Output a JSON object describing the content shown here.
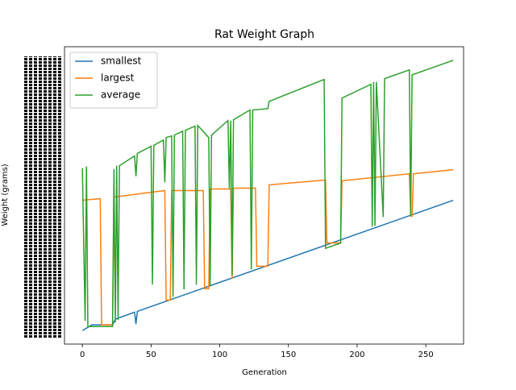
{
  "chart_data": {
    "type": "line",
    "title": "Rat Weight Graph",
    "xlabel": "Generation",
    "ylabel": "Weight (grams)",
    "xlim": [
      -13,
      277.5
    ],
    "xticks": [
      0,
      50,
      100,
      150,
      200,
      250
    ],
    "ylim": [
      -5,
      105
    ],
    "legend": "upper left",
    "series": [
      {
        "name": "smallest",
        "color": "#1f77b4",
        "x": [
          0,
          7,
          22,
          24,
          38,
          39,
          40,
          270
        ],
        "values": [
          0,
          2.1,
          2.1,
          4.2,
          6.8,
          2.4,
          7.1,
          48.2
        ]
      },
      {
        "name": "largest",
        "color": "#ff7f0e",
        "x": [
          0,
          13,
          14,
          22,
          23,
          60,
          61,
          64,
          65,
          88,
          89,
          92,
          93,
          108,
          109,
          110,
          126,
          127,
          135,
          136,
          177,
          178,
          188,
          189,
          238,
          239,
          240,
          241,
          270
        ],
        "values": [
          48.2,
          48.8,
          2.1,
          2.1,
          49.4,
          51.8,
          11.3,
          11.3,
          51.8,
          51.8,
          15.5,
          15.5,
          52.4,
          52.4,
          19.3,
          52.7,
          52.7,
          23.8,
          23.8,
          53.9,
          55.7,
          32.4,
          32.4,
          55.4,
          58.0,
          42.3,
          42.3,
          58.0,
          59.5
        ]
      },
      {
        "name": "average",
        "color": "#2ca02c",
        "x": [
          0,
          2,
          3,
          4,
          22,
          23,
          24,
          25,
          26,
          27,
          38,
          39,
          40,
          50,
          51,
          52,
          59,
          60,
          61,
          65,
          66,
          67,
          73,
          74,
          75,
          82,
          83,
          84,
          92,
          93,
          94,
          106,
          107,
          108,
          109,
          110,
          122,
          123,
          124,
          135,
          136,
          176,
          177,
          188,
          189,
          210,
          211,
          212,
          213,
          214,
          219,
          220,
          238,
          239,
          240,
          270
        ],
        "values": [
          60.1,
          3.6,
          60.7,
          1.5,
          1.5,
          59.8,
          3.0,
          61.0,
          3.9,
          61.0,
          64.6,
          57.1,
          65.5,
          68.2,
          17.0,
          68.5,
          70.5,
          54.8,
          71.4,
          72.0,
          12.5,
          72.3,
          73.8,
          15.2,
          74.1,
          75.6,
          17.0,
          75.9,
          71.4,
          16.4,
          72.3,
          77.7,
          52.4,
          77.7,
          20.5,
          78.0,
          81.6,
          22.6,
          81.6,
          82.1,
          84.8,
          92.9,
          30.4,
          32.4,
          86.0,
          91.1,
          38.4,
          92.0,
          38.7,
          92.0,
          42.0,
          93.2,
          96.4,
          42.3,
          94.6,
          100
        ]
      }
    ]
  }
}
